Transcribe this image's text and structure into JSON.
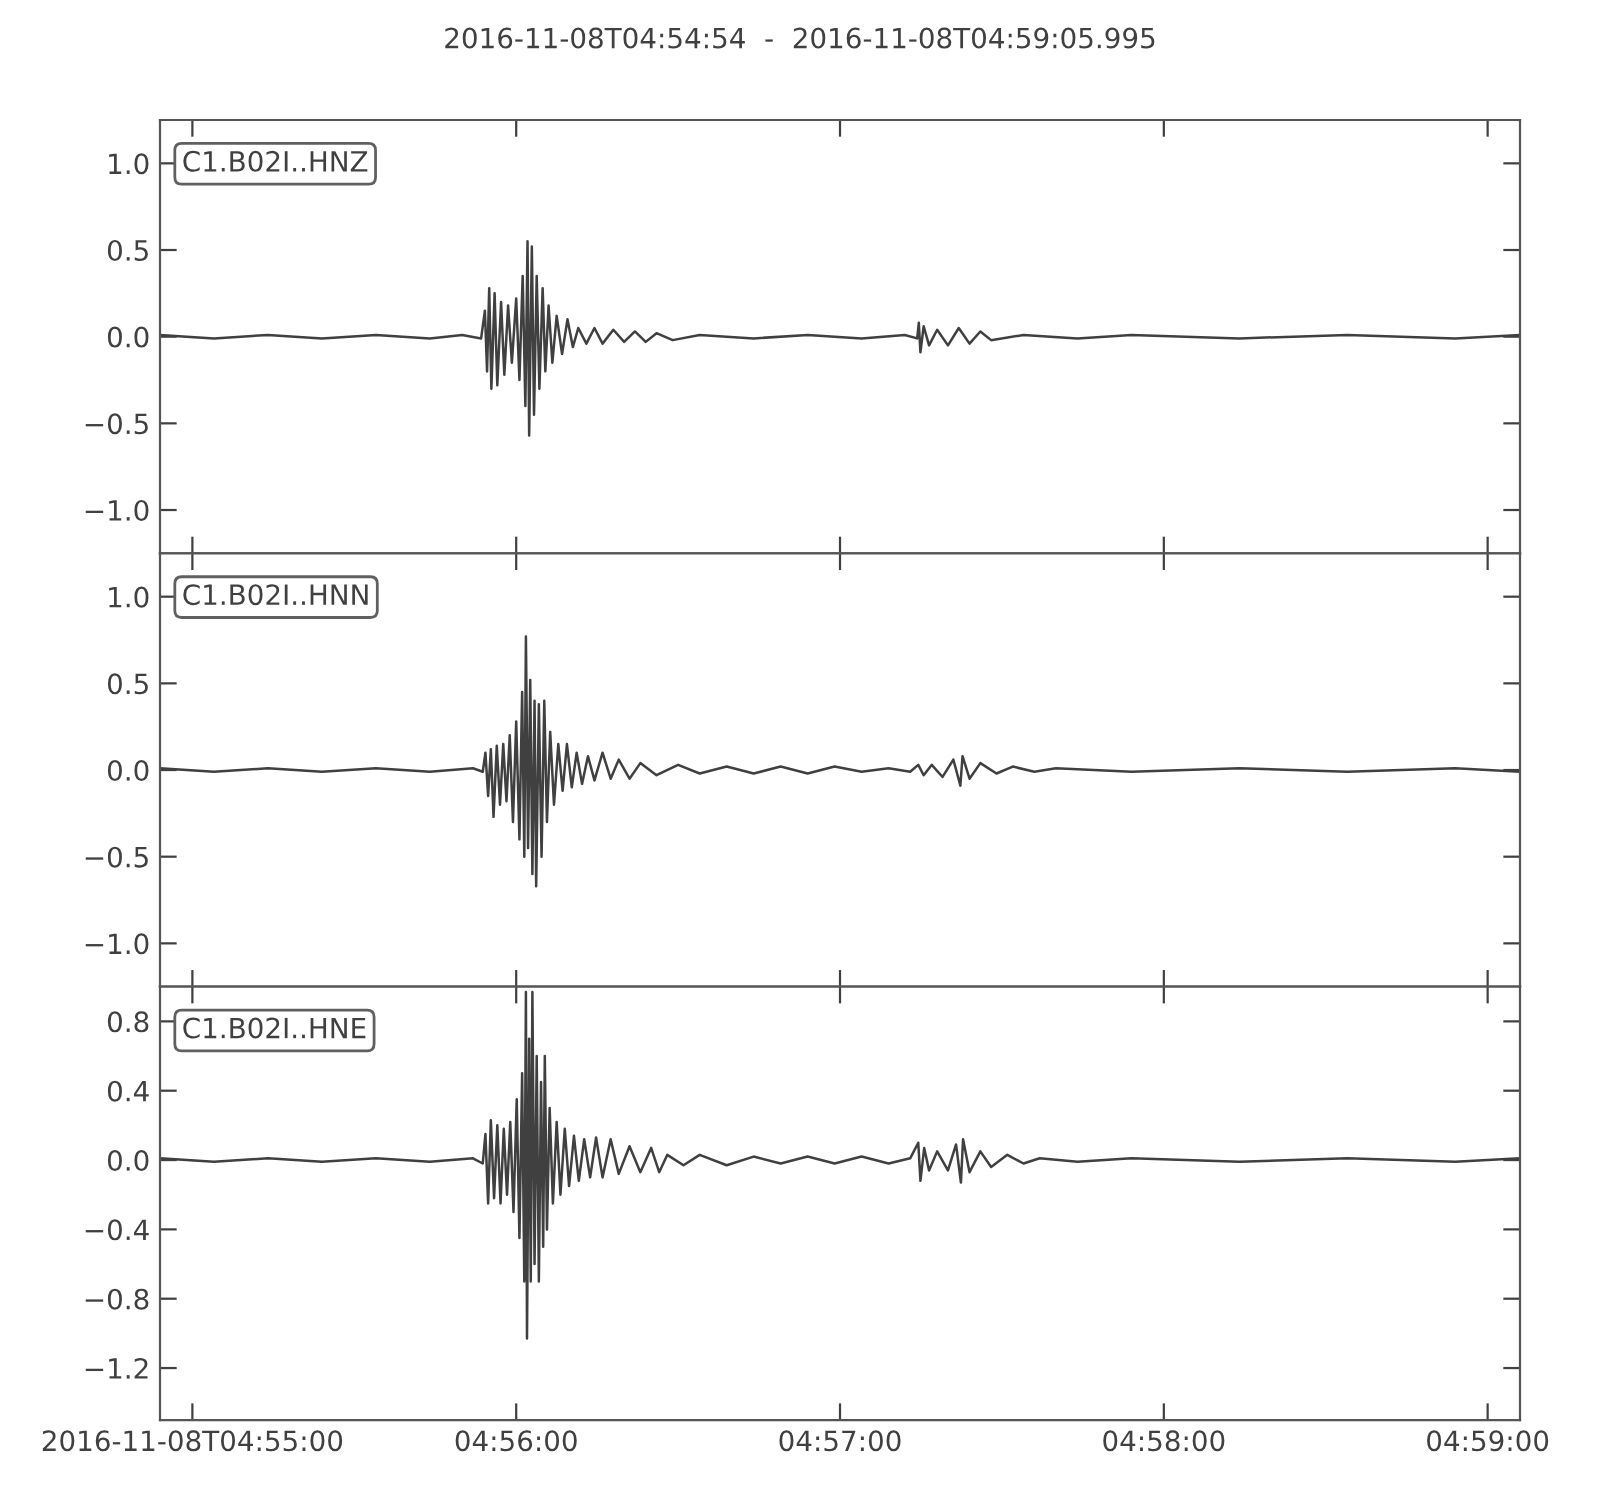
{
  "chart_data": [
    {
      "type": "line",
      "title": "2016-11-08T04:54:54  -  2016-11-08T04:59:05.995",
      "annotations": [
        "C1.B02I..HNZ"
      ],
      "x": [
        "2016-11-08T04:54:54",
        "2016-11-08T04:55:04",
        "2016-11-08T04:55:14",
        "2016-11-08T04:55:24",
        "2016-11-08T04:55:34",
        "2016-11-08T04:55:44",
        "2016-11-08T04:55:50",
        "2016-11-08T04:55:53.5",
        "2016-11-08T04:55:54.2",
        "2016-11-08T04:55:54.6",
        "2016-11-08T04:55:55",
        "2016-11-08T04:55:55.4",
        "2016-11-08T04:55:56",
        "2016-11-08T04:55:56.5",
        "2016-11-08T04:55:57.2",
        "2016-11-08T04:55:57.8",
        "2016-11-08T04:55:58.5",
        "2016-11-08T04:55:59.2",
        "2016-11-08T04:56:00",
        "2016-11-08T04:56:00.6",
        "2016-11-08T04:56:01.2",
        "2016-11-08T04:56:01.7",
        "2016-11-08T04:56:02.1",
        "2016-11-08T04:56:02.4",
        "2016-11-08T04:56:02.9",
        "2016-11-08T04:56:03.3",
        "2016-11-08T04:56:03.8",
        "2016-11-08T04:56:04.3",
        "2016-11-08T04:56:04.9",
        "2016-11-08T04:56:05.4",
        "2016-11-08T04:56:06",
        "2016-11-08T04:56:06.7",
        "2016-11-08T04:56:07.5",
        "2016-11-08T04:56:08.5",
        "2016-11-08T04:56:09.5",
        "2016-11-08T04:56:10.5",
        "2016-11-08T04:56:11.5",
        "2016-11-08T04:56:13",
        "2016-11-08T04:56:14.5",
        "2016-11-08T04:56:16",
        "2016-11-08T04:56:18",
        "2016-11-08T04:56:20",
        "2016-11-08T04:56:22",
        "2016-11-08T04:56:24",
        "2016-11-08T04:56:26",
        "2016-11-08T04:56:29",
        "2016-11-08T04:56:34",
        "2016-11-08T04:56:44",
        "2016-11-08T04:56:54",
        "2016-11-08T04:57:04",
        "2016-11-08T04:57:12",
        "2016-11-08T04:57:14.3",
        "2016-11-08T04:57:14.6",
        "2016-11-08T04:57:14.9",
        "2016-11-08T04:57:15.5",
        "2016-11-08T04:57:16.5",
        "2016-11-08T04:57:18",
        "2016-11-08T04:57:20",
        "2016-11-08T04:57:22",
        "2016-11-08T04:57:24",
        "2016-11-08T04:57:26",
        "2016-11-08T04:57:28",
        "2016-11-08T04:57:34",
        "2016-11-08T04:57:44",
        "2016-11-08T04:57:54",
        "2016-11-08T04:58:14",
        "2016-11-08T04:58:34",
        "2016-11-08T04:58:54",
        "2016-11-08T04:59:05.9"
      ],
      "series": [
        {
          "color": "#404040",
          "values": [
            0.01,
            -0.01,
            0.01,
            -0.01,
            0.01,
            -0.01,
            0.01,
            -0.01,
            0.15,
            -0.2,
            0.28,
            -0.3,
            0.25,
            -0.28,
            0.2,
            -0.22,
            0.18,
            -0.15,
            0.22,
            -0.25,
            0.35,
            -0.4,
            0.55,
            -0.57,
            0.52,
            -0.45,
            0.35,
            -0.3,
            0.28,
            -0.2,
            0.18,
            -0.15,
            0.12,
            -0.1,
            0.1,
            -0.06,
            0.05,
            -0.04,
            0.05,
            -0.04,
            0.04,
            -0.03,
            0.03,
            -0.03,
            0.02,
            -0.02,
            0.01,
            -0.01,
            0.01,
            -0.01,
            0.01,
            -0.01,
            0.08,
            -0.09,
            0.06,
            -0.05,
            0.04,
            -0.05,
            0.05,
            -0.04,
            0.03,
            -0.02,
            0.01,
            -0.01,
            0.01,
            -0.01,
            0.01,
            -0.01,
            0.01
          ]
        }
      ],
      "xlim": [
        "2016-11-08T04:54:54",
        "2016-11-08T04:59:05.995"
      ],
      "xticks": [
        {
          "value": "2016-11-08T04:55:00",
          "label": null
        },
        {
          "value": "2016-11-08T04:56:00",
          "label": null
        },
        {
          "value": "2016-11-08T04:57:00",
          "label": null
        },
        {
          "value": "2016-11-08T04:58:00",
          "label": null
        },
        {
          "value": "2016-11-08T04:59:00",
          "label": null
        }
      ],
      "ylim": [
        -1.25,
        1.25
      ],
      "yticks": [
        {
          "value": -1,
          "label": "−1.0"
        },
        {
          "value": -0.5,
          "label": "−0.5"
        },
        {
          "value": 0,
          "label": "0.0"
        },
        {
          "value": 0.5,
          "label": "0.5"
        },
        {
          "value": 1,
          "label": "1.0"
        }
      ],
      "tick_labels": "y"
    },
    {
      "type": "line",
      "annotations": [
        "C1.B02I..HNN"
      ],
      "x": [
        "2016-11-08T04:54:54",
        "2016-11-08T04:55:04",
        "2016-11-08T04:55:14",
        "2016-11-08T04:55:24",
        "2016-11-08T04:55:34",
        "2016-11-08T04:55:44",
        "2016-11-08T04:55:52",
        "2016-11-08T04:55:53.8",
        "2016-11-08T04:55:54.3",
        "2016-11-08T04:55:54.8",
        "2016-11-08T04:55:55.3",
        "2016-11-08T04:55:55.8",
        "2016-11-08T04:55:56.4",
        "2016-11-08T04:55:57",
        "2016-11-08T04:55:57.6",
        "2016-11-08T04:55:58.2",
        "2016-11-08T04:55:58.8",
        "2016-11-08T04:55:59.4",
        "2016-11-08T04:56:00",
        "2016-11-08T04:56:00.6",
        "2016-11-08T04:56:01.1",
        "2016-11-08T04:56:01.5",
        "2016-11-08T04:56:01.8",
        "2016-11-08T04:56:02.2",
        "2016-11-08T04:56:02.6",
        "2016-11-08T04:56:03",
        "2016-11-08T04:56:03.4",
        "2016-11-08T04:56:03.7",
        "2016-11-08T04:56:04.2",
        "2016-11-08T04:56:04.7",
        "2016-11-08T04:56:05.2",
        "2016-11-08T04:56:05.7",
        "2016-11-08T04:56:06.3",
        "2016-11-08T04:56:07",
        "2016-11-08T04:56:07.8",
        "2016-11-08T04:56:08.6",
        "2016-11-08T04:56:09.4",
        "2016-11-08T04:56:10.3",
        "2016-11-08T04:56:11.2",
        "2016-11-08T04:56:12.2",
        "2016-11-08T04:56:13.3",
        "2016-11-08T04:56:14.5",
        "2016-11-08T04:56:16",
        "2016-11-08T04:56:17.5",
        "2016-11-08T04:56:19",
        "2016-11-08T04:56:21",
        "2016-11-08T04:56:23",
        "2016-11-08T04:56:26",
        "2016-11-08T04:56:30",
        "2016-11-08T04:56:34",
        "2016-11-08T04:56:39",
        "2016-11-08T04:56:44",
        "2016-11-08T04:56:49",
        "2016-11-08T04:56:54",
        "2016-11-08T04:56:59",
        "2016-11-08T04:57:04",
        "2016-11-08T04:57:09",
        "2016-11-08T04:57:13",
        "2016-11-08T04:57:14.5",
        "2016-11-08T04:57:15.5",
        "2016-11-08T04:57:17",
        "2016-11-08T04:57:19",
        "2016-11-08T04:57:21",
        "2016-11-08T04:57:22.3",
        "2016-11-08T04:57:22.7",
        "2016-11-08T04:57:24",
        "2016-11-08T04:57:26",
        "2016-11-08T04:57:29",
        "2016-11-08T04:57:32",
        "2016-11-08T04:57:36",
        "2016-11-08T04:57:40",
        "2016-11-08T04:57:54",
        "2016-11-08T04:58:14",
        "2016-11-08T04:58:34",
        "2016-11-08T04:58:54",
        "2016-11-08T04:59:05.9"
      ],
      "series": [
        {
          "color": "#404040",
          "values": [
            0.01,
            -0.01,
            0.01,
            -0.01,
            0.01,
            -0.01,
            0.01,
            -0.01,
            0.1,
            -0.15,
            0.12,
            -0.27,
            0.14,
            -0.2,
            0.15,
            -0.18,
            0.2,
            -0.3,
            0.28,
            -0.4,
            0.45,
            -0.5,
            0.77,
            -0.45,
            0.52,
            -0.6,
            0.4,
            -0.67,
            0.38,
            -0.5,
            0.4,
            -0.3,
            0.22,
            -0.2,
            0.15,
            -0.12,
            0.15,
            -0.1,
            0.1,
            -0.08,
            0.08,
            -0.06,
            0.1,
            -0.05,
            0.06,
            -0.05,
            0.04,
            -0.03,
            0.03,
            -0.02,
            0.02,
            -0.02,
            0.02,
            -0.02,
            0.02,
            -0.01,
            0.01,
            -0.01,
            0.03,
            -0.03,
            0.03,
            -0.04,
            0.06,
            -0.09,
            0.08,
            -0.05,
            0.04,
            -0.02,
            0.02,
            -0.01,
            0.01,
            -0.01,
            0.01,
            -0.01,
            0.01,
            -0.01
          ]
        }
      ],
      "xlim": [
        "2016-11-08T04:54:54",
        "2016-11-08T04:59:05.995"
      ],
      "xticks": [
        {
          "value": "2016-11-08T04:55:00",
          "label": null
        },
        {
          "value": "2016-11-08T04:56:00",
          "label": null
        },
        {
          "value": "2016-11-08T04:57:00",
          "label": null
        },
        {
          "value": "2016-11-08T04:58:00",
          "label": null
        },
        {
          "value": "2016-11-08T04:59:00",
          "label": null
        }
      ],
      "ylim": [
        -1.25,
        1.25
      ],
      "yticks": [
        {
          "value": -1,
          "label": "−1.0"
        },
        {
          "value": -0.5,
          "label": "−0.5"
        },
        {
          "value": 0,
          "label": "0.0"
        },
        {
          "value": 0.5,
          "label": "0.5"
        },
        {
          "value": 1,
          "label": "1.0"
        }
      ],
      "tick_labels": "y"
    },
    {
      "type": "line",
      "annotations": [
        "C1.B02I..HNE"
      ],
      "x": [
        "2016-11-08T04:54:54",
        "2016-11-08T04:55:04",
        "2016-11-08T04:55:14",
        "2016-11-08T04:55:24",
        "2016-11-08T04:55:34",
        "2016-11-08T04:55:44",
        "2016-11-08T04:55:52",
        "2016-11-08T04:55:53.8",
        "2016-11-08T04:55:54.3",
        "2016-11-08T04:55:54.8",
        "2016-11-08T04:55:55.3",
        "2016-11-08T04:55:55.9",
        "2016-11-08T04:55:56.5",
        "2016-11-08T04:55:57.1",
        "2016-11-08T04:55:57.7",
        "2016-11-08T04:55:58.3",
        "2016-11-08T04:55:58.9",
        "2016-11-08T04:55:59.5",
        "2016-11-08T04:56:00.1",
        "2016-11-08T04:56:00.6",
        "2016-11-08T04:56:01.1",
        "2016-11-08T04:56:01.5",
        "2016-11-08T04:56:01.8",
        "2016-11-08T04:56:02",
        "2016-11-08T04:56:02.4",
        "2016-11-08T04:56:02.7",
        "2016-11-08T04:56:03",
        "2016-11-08T04:56:03.4",
        "2016-11-08T04:56:03.8",
        "2016-11-08T04:56:04.2",
        "2016-11-08T04:56:04.6",
        "2016-11-08T04:56:05",
        "2016-11-08T04:56:05.3",
        "2016-11-08T04:56:05.7",
        "2016-11-08T04:56:06.2",
        "2016-11-08T04:56:06.8",
        "2016-11-08T04:56:07.5",
        "2016-11-08T04:56:08.2",
        "2016-11-08T04:56:09",
        "2016-11-08T04:56:09.8",
        "2016-11-08T04:56:10.7",
        "2016-11-08T04:56:11.6",
        "2016-11-08T04:56:12.6",
        "2016-11-08T04:56:13.7",
        "2016-11-08T04:56:14.8",
        "2016-11-08T04:56:16",
        "2016-11-08T04:56:17.5",
        "2016-11-08T04:56:19",
        "2016-11-08T04:56:21",
        "2016-11-08T04:56:23",
        "2016-11-08T04:56:25",
        "2016-11-08T04:56:26.5",
        "2016-11-08T04:56:28",
        "2016-11-08T04:56:31",
        "2016-11-08T04:56:34",
        "2016-11-08T04:56:39",
        "2016-11-08T04:56:44",
        "2016-11-08T04:56:49",
        "2016-11-08T04:56:54",
        "2016-11-08T04:56:59",
        "2016-11-08T04:57:04",
        "2016-11-08T04:57:09",
        "2016-11-08T04:57:13",
        "2016-11-08T04:57:14.5",
        "2016-11-08T04:57:14.9",
        "2016-11-08T04:57:15.6",
        "2016-11-08T04:57:16.5",
        "2016-11-08T04:57:18",
        "2016-11-08T04:57:20",
        "2016-11-08T04:57:21.5",
        "2016-11-08T04:57:22.4",
        "2016-11-08T04:57:22.8",
        "2016-11-08T04:57:24",
        "2016-11-08T04:57:26",
        "2016-11-08T04:57:28",
        "2016-11-08T04:57:31",
        "2016-11-08T04:57:34",
        "2016-11-08T04:57:37",
        "2016-11-08T04:57:44",
        "2016-11-08T04:57:54",
        "2016-11-08T04:58:14",
        "2016-11-08T04:58:34",
        "2016-11-08T04:58:54",
        "2016-11-08T04:59:05.9"
      ],
      "series": [
        {
          "color": "#404040",
          "values": [
            0.01,
            -0.01,
            0.01,
            -0.01,
            0.01,
            -0.01,
            0.01,
            -0.02,
            0.15,
            -0.25,
            0.23,
            -0.22,
            0.2,
            -0.25,
            0.18,
            -0.2,
            0.22,
            -0.3,
            0.35,
            -0.45,
            0.5,
            -0.7,
            0.97,
            -1.03,
            0.7,
            -0.7,
            0.97,
            -0.6,
            0.6,
            -0.7,
            0.45,
            -0.5,
            0.6,
            -0.4,
            0.3,
            -0.25,
            0.22,
            -0.2,
            0.18,
            -0.15,
            0.14,
            -0.12,
            0.12,
            -0.1,
            0.13,
            -0.1,
            0.12,
            -0.08,
            0.08,
            -0.07,
            0.07,
            -0.07,
            0.03,
            -0.03,
            0.03,
            -0.03,
            0.02,
            -0.02,
            0.02,
            -0.02,
            0.02,
            -0.02,
            0.01,
            0.1,
            -0.12,
            0.07,
            -0.06,
            0.05,
            -0.06,
            0.09,
            -0.13,
            0.12,
            -0.07,
            0.05,
            -0.04,
            0.03,
            -0.02,
            0.01,
            -0.01,
            0.01,
            -0.01,
            0.01,
            -0.01,
            0.01
          ]
        }
      ],
      "xlim": [
        "2016-11-08T04:54:54",
        "2016-11-08T04:59:05.995"
      ],
      "xticks": [
        {
          "value": "2016-11-08T04:55:00",
          "label": "2016-11-08T04:55:00"
        },
        {
          "value": "2016-11-08T04:56:00",
          "label": "04:56:00"
        },
        {
          "value": "2016-11-08T04:57:00",
          "label": "04:57:00"
        },
        {
          "value": "2016-11-08T04:58:00",
          "label": "04:58:00"
        },
        {
          "value": "2016-11-08T04:59:00",
          "label": "04:59:00"
        }
      ],
      "ylim": [
        -1.5,
        1.0
      ],
      "yticks": [
        {
          "value": -1.2,
          "label": "−1.2"
        },
        {
          "value": -0.8,
          "label": "−0.8"
        },
        {
          "value": -0.4,
          "label": "−0.4"
        },
        {
          "value": 0,
          "label": "0.0"
        },
        {
          "value": 0.4,
          "label": "0.4"
        },
        {
          "value": 0.8,
          "label": "0.8"
        }
      ]
    }
  ]
}
